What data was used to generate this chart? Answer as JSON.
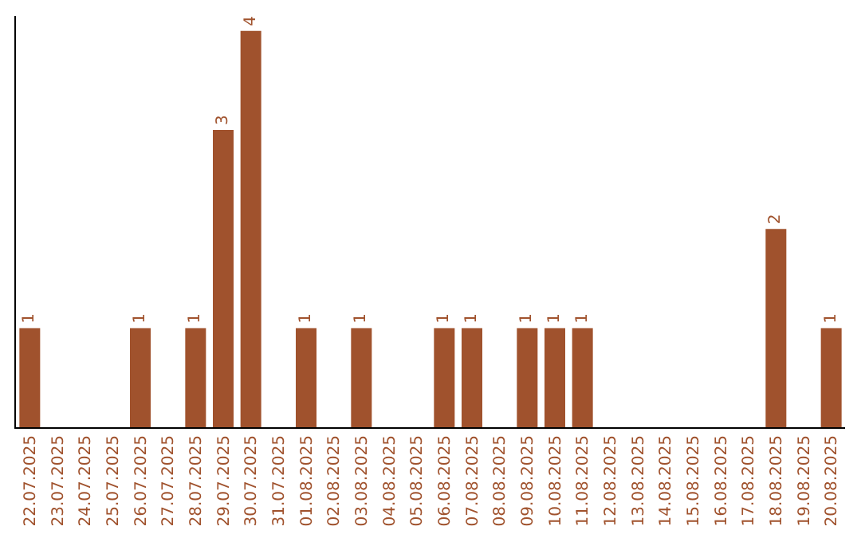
{
  "chart_data": {
    "type": "bar",
    "categories": [
      "22.07.2025",
      "23.07.2025",
      "24.07.2025",
      "25.07.2025",
      "26.07.2025",
      "27.07.2025",
      "28.07.2025",
      "29.07.2025",
      "30.07.2025",
      "31.07.2025",
      "01.08.2025",
      "02.08.2025",
      "03.08.2025",
      "04.08.2025",
      "05.08.2025",
      "06.08.2025",
      "07.08.2025",
      "08.08.2025",
      "09.08.2025",
      "10.08.2025",
      "11.08.2025",
      "12.08.2025",
      "13.08.2025",
      "14.08.2025",
      "15.08.2025",
      "16.08.2025",
      "17.08.2025",
      "18.08.2025",
      "19.08.2025",
      "20.08.2025"
    ],
    "values": [
      1,
      0,
      0,
      0,
      1,
      0,
      1,
      3,
      4,
      0,
      1,
      0,
      1,
      0,
      0,
      1,
      1,
      0,
      1,
      1,
      1,
      0,
      0,
      0,
      0,
      0,
      0,
      2,
      0,
      1
    ],
    "value_labels": [
      "1",
      null,
      null,
      null,
      "1",
      null,
      "1",
      "3",
      "4",
      null,
      "1",
      null,
      "1",
      null,
      null,
      "1",
      "1",
      null,
      "1",
      "1",
      "1",
      null,
      null,
      null,
      null,
      null,
      null,
      "2",
      null,
      "1"
    ],
    "color": "#a0522d",
    "ylim": [
      0,
      4.15
    ],
    "grid": false,
    "legend": false,
    "tick_labels": "x"
  }
}
